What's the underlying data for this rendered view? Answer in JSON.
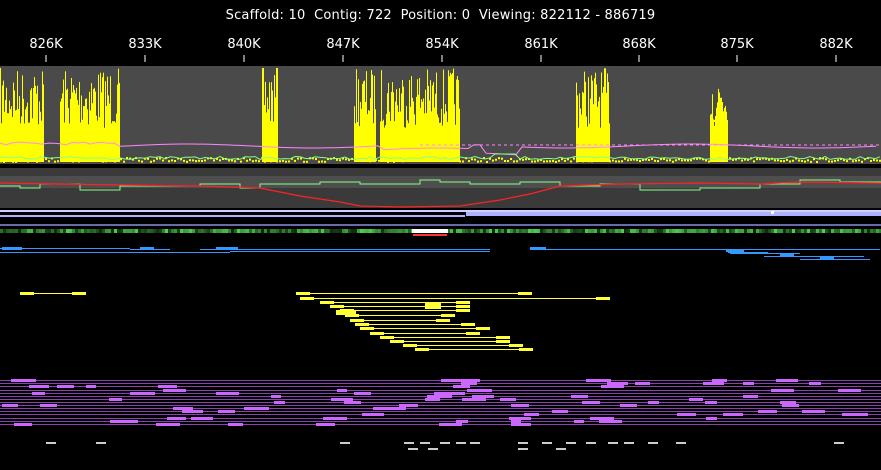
{
  "header": {
    "scaffold_label": "Scaffold:",
    "scaffold": "10",
    "contig_label": "Contig:",
    "contig": "722",
    "position_label": "Position:",
    "position": "0",
    "viewing_label": "Viewing:",
    "viewing_start": "822112",
    "viewing_end": "886719"
  },
  "ruler": {
    "ticks": [
      "826K",
      "833K",
      "840K",
      "847K",
      "854K",
      "861K",
      "868K",
      "875K",
      "882K"
    ]
  },
  "colors": {
    "background": "#000000",
    "coverage_track_bg": "#4a4a4a",
    "coverage_bars": "#ffff00",
    "pink_line": "#ff88ff",
    "green_line": "#88ff88",
    "gc_track_bg": "#3a3a3a",
    "red_line": "#ff2222",
    "contig_bar": "#b0b0ff",
    "blue_features": "#3399ff",
    "yellow_reads": "#ffff33",
    "purple_reads": "#cc66ff",
    "gray_marks": "#cccccc"
  }
}
